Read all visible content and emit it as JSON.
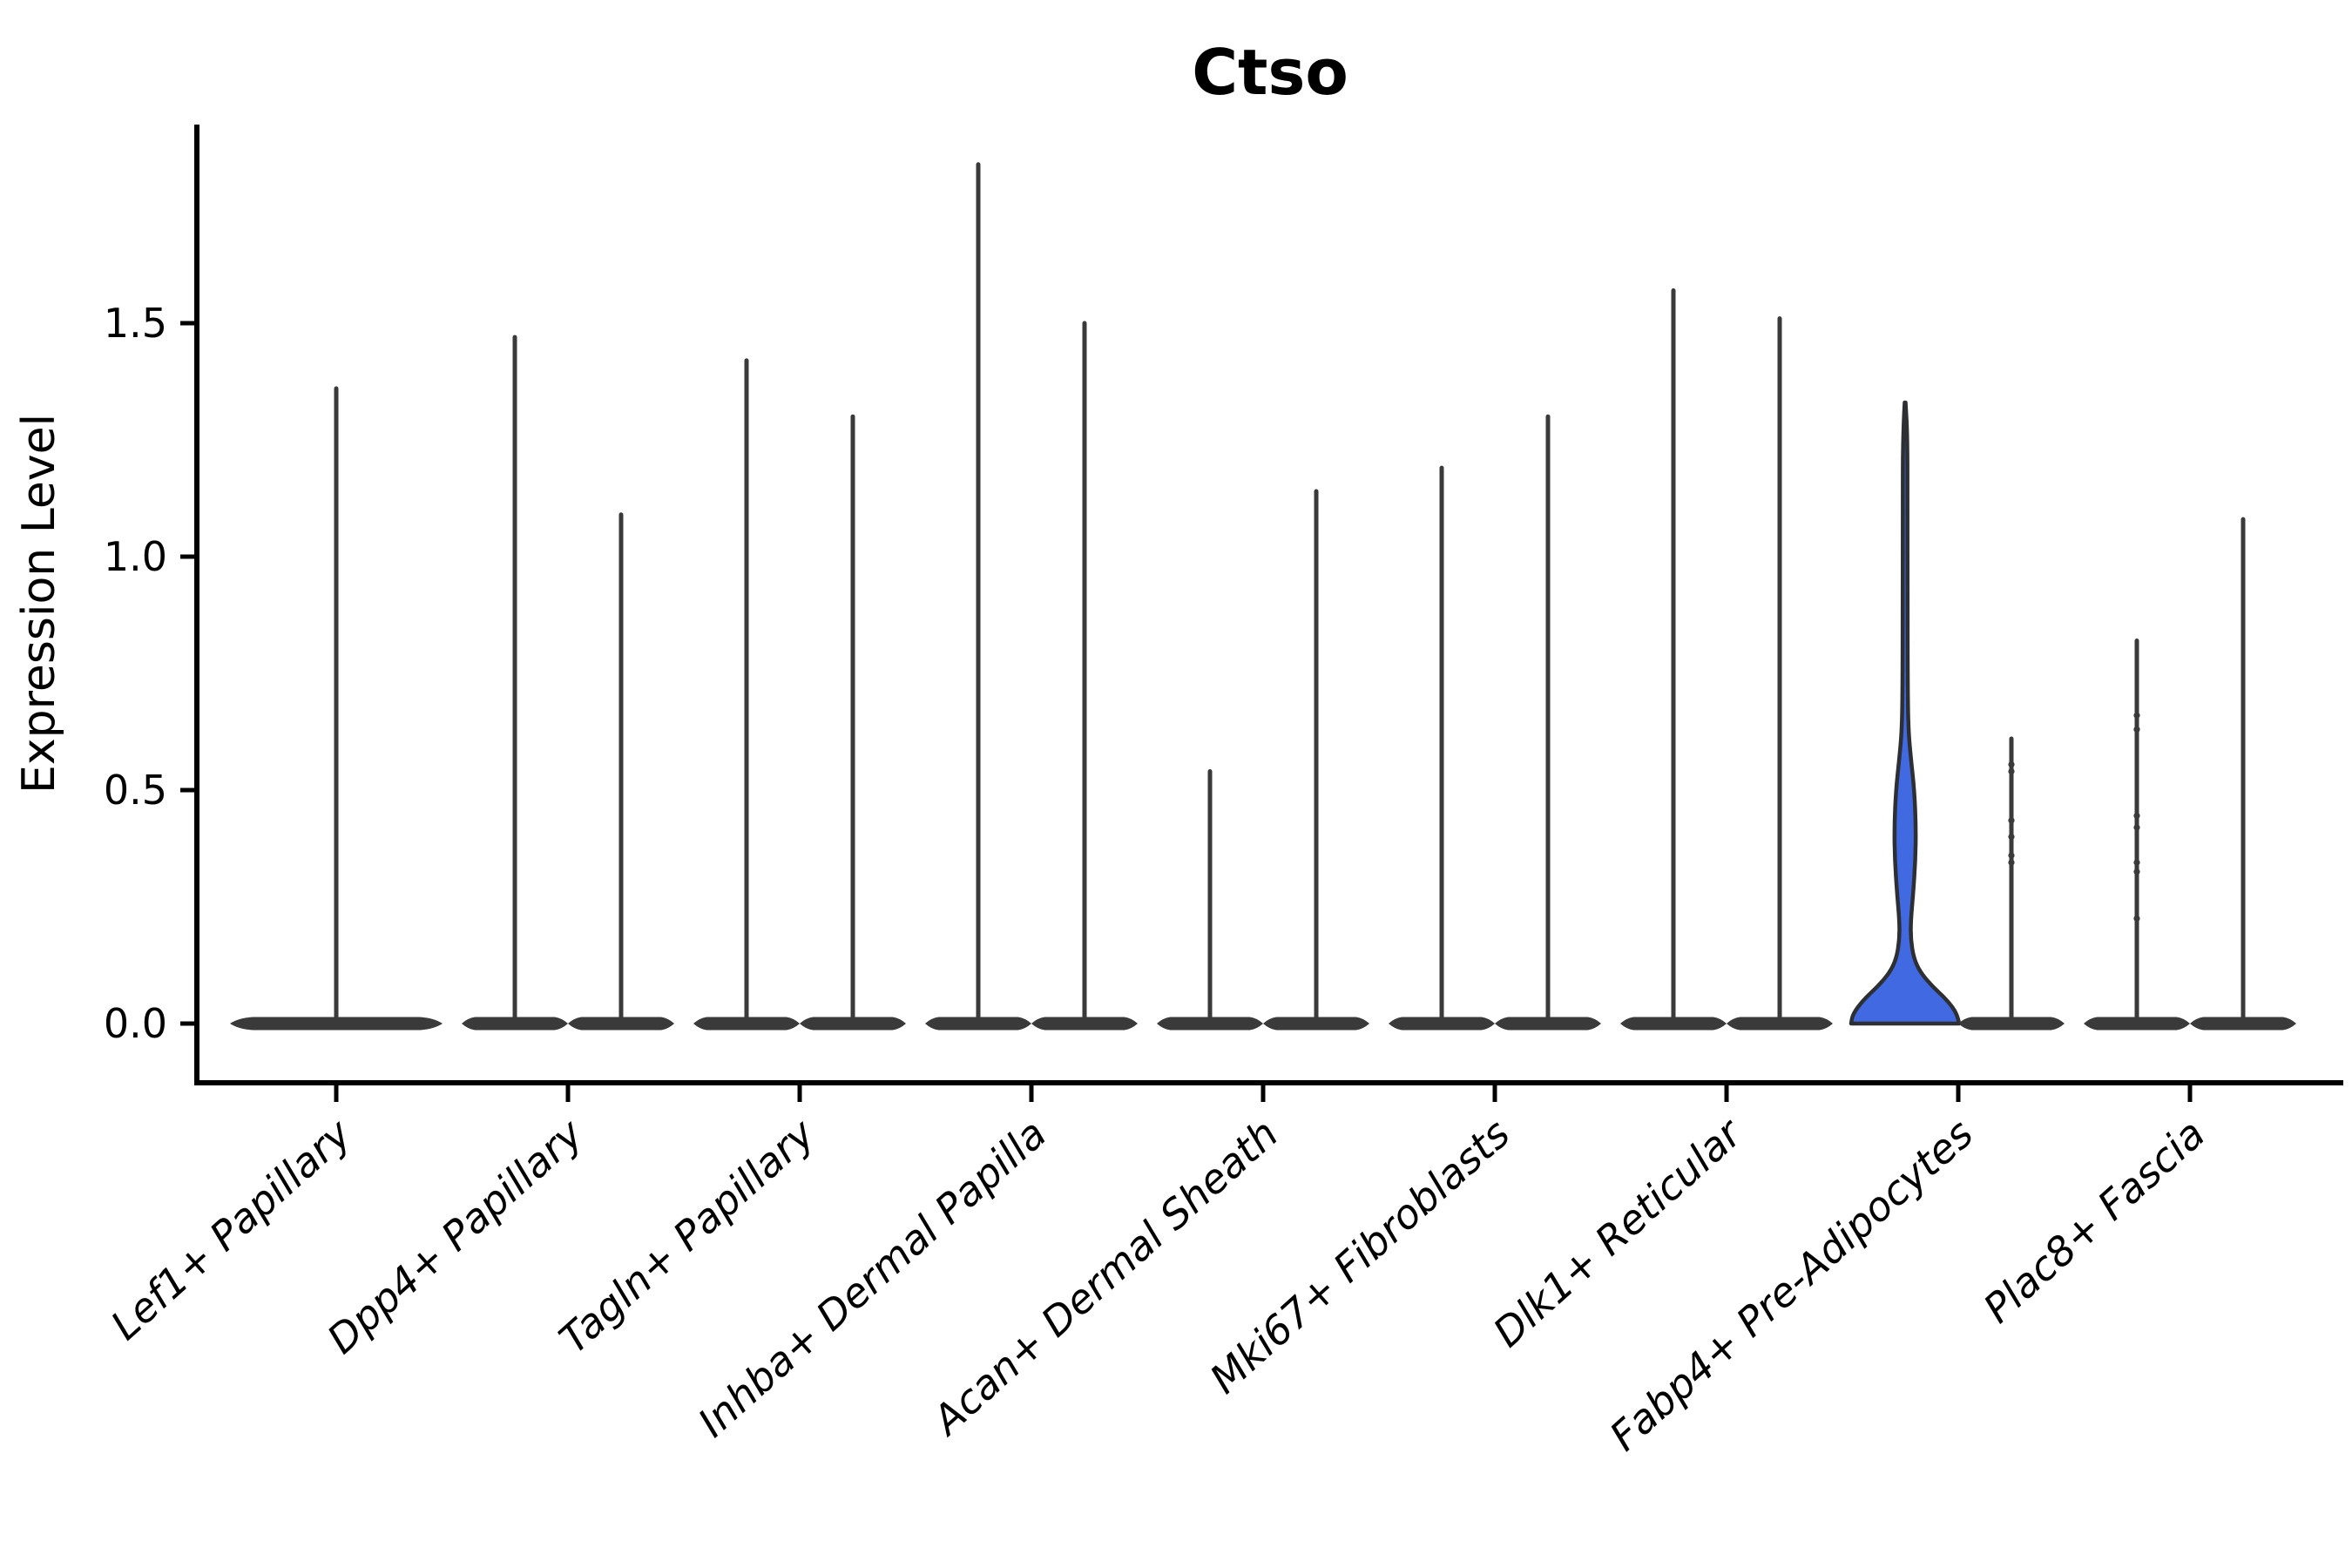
{
  "chart_data": {
    "type": "violin",
    "title": "Ctso",
    "xlabel": "",
    "ylabel": "Expression Level",
    "legend": "none",
    "grid": false,
    "ytick_labels": [
      "0.0",
      "0.5",
      "1.0",
      "1.5"
    ],
    "ytick_values": [
      0.0,
      0.5,
      1.0,
      1.5
    ],
    "ylim": [
      -0.12,
      1.93
    ],
    "categories": [
      "Lef1+ Papillary",
      "Dpp4+ Papillary",
      "Tagln+ Papillary",
      "Inhba+ Dermal Papilla",
      "Acan+ Dermal Sheath",
      "Mki67+ Fibroblasts",
      "Dlk1+ Reticular",
      "Fabp4+ Pre-Adipocytes",
      "Plac8+ Fascia"
    ],
    "violins": [
      {
        "category_index": 0,
        "slot": "center",
        "max": 1.36,
        "highlighted": false,
        "dots": []
      },
      {
        "category_index": 1,
        "slot": "left",
        "max": 1.47,
        "highlighted": false,
        "dots": []
      },
      {
        "category_index": 1,
        "slot": "right",
        "max": 1.09,
        "highlighted": false,
        "dots": []
      },
      {
        "category_index": 2,
        "slot": "left",
        "max": 1.42,
        "highlighted": false,
        "dots": []
      },
      {
        "category_index": 2,
        "slot": "right",
        "max": 1.3,
        "highlighted": false,
        "dots": []
      },
      {
        "category_index": 3,
        "slot": "left",
        "max": 1.84,
        "highlighted": false,
        "dots": []
      },
      {
        "category_index": 3,
        "slot": "right",
        "max": 1.5,
        "highlighted": false,
        "dots": []
      },
      {
        "category_index": 4,
        "slot": "left",
        "max": 0.54,
        "highlighted": false,
        "dots": []
      },
      {
        "category_index": 4,
        "slot": "right",
        "max": 1.14,
        "highlighted": false,
        "dots": []
      },
      {
        "category_index": 5,
        "slot": "left",
        "max": 1.19,
        "highlighted": false,
        "dots": []
      },
      {
        "category_index": 5,
        "slot": "right",
        "max": 1.3,
        "highlighted": false,
        "dots": []
      },
      {
        "category_index": 6,
        "slot": "left",
        "max": 1.57,
        "highlighted": false,
        "dots": []
      },
      {
        "category_index": 6,
        "slot": "right",
        "max": 1.51,
        "highlighted": false,
        "dots": []
      },
      {
        "category_index": 7,
        "slot": "left",
        "max": 1.33,
        "highlighted": true,
        "profile": [
          [
            0.0,
            1.0
          ],
          [
            0.02,
            0.97
          ],
          [
            0.05,
            0.78
          ],
          [
            0.08,
            0.5
          ],
          [
            0.11,
            0.28
          ],
          [
            0.14,
            0.16
          ],
          [
            0.18,
            0.105
          ],
          [
            0.22,
            0.105
          ],
          [
            0.28,
            0.15
          ],
          [
            0.35,
            0.19
          ],
          [
            0.42,
            0.2
          ],
          [
            0.5,
            0.17
          ],
          [
            0.57,
            0.105
          ],
          [
            0.63,
            0.06
          ],
          [
            0.72,
            0.048
          ],
          [
            0.9,
            0.045
          ],
          [
            1.1,
            0.043
          ],
          [
            1.26,
            0.042
          ],
          [
            1.33,
            0.0
          ]
        ],
        "dots": []
      },
      {
        "category_index": 7,
        "slot": "right",
        "max": 0.61,
        "highlighted": false,
        "dots": [
          0.555,
          0.54,
          0.435,
          0.4,
          0.36,
          0.345
        ]
      },
      {
        "category_index": 8,
        "slot": "left",
        "max": 0.82,
        "highlighted": false,
        "dots": [
          0.66,
          0.63,
          0.445,
          0.42,
          0.345,
          0.325,
          0.225
        ]
      },
      {
        "category_index": 8,
        "slot": "right",
        "max": 1.08,
        "highlighted": false,
        "dots": []
      }
    ],
    "colors": {
      "violin": "#3a3a3a",
      "highlight_fill": "#4169e1",
      "highlight_stroke": "#2d2f33",
      "axis": "#000000",
      "text": "#000000",
      "background": "#ffffff"
    }
  }
}
